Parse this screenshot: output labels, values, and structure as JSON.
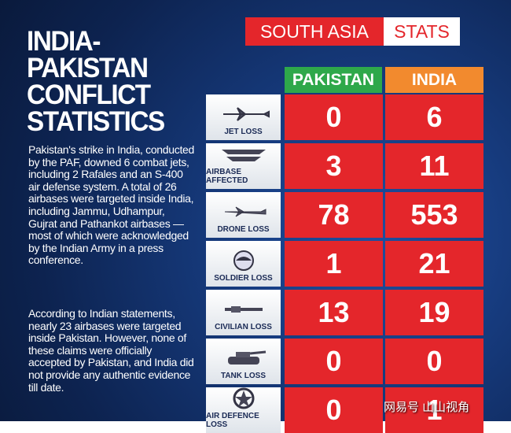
{
  "title": [
    "INDIA-",
    "PAKISTAN",
    "CONFLICT",
    "STATISTICS"
  ],
  "paragraphs": [
    "Pakistan's strike in India, conducted by the PAF, downed 6 combat jets, including 2 Rafales and an S-400 air defense system. A total of 26 airbases were targeted inside India, including Jammu, Udhampur, Gujrat and Pathankot airbases — most of which were acknowledged by the Indian Army in a press conference.",
    "According to Indian statements, nearly 23 airbases were targeted inside Pakistan. However, none of these claims were officially accepted by Pakistan, and India did not provide any authentic evidence till date."
  ],
  "badge": {
    "left": "SOUTH ASIA",
    "right": "STATS"
  },
  "table": {
    "columns": [
      "PAKISTAN",
      "INDIA"
    ],
    "rows": [
      [
        "JET LOSS",
        "0",
        "6"
      ],
      [
        "AIRBASE AFFECTED",
        "3",
        "11"
      ],
      [
        "DRONE LOSS",
        "78",
        "553"
      ],
      [
        "SOLDIER LOSS",
        "1",
        "21"
      ],
      [
        "CIVILIAN LOSS",
        "13",
        "19"
      ],
      [
        "TANK LOSS",
        "0",
        "0"
      ],
      [
        "AIR DEFENCE LOSS",
        "0",
        "1"
      ]
    ]
  },
  "watermark": "网易号 山山视角"
}
